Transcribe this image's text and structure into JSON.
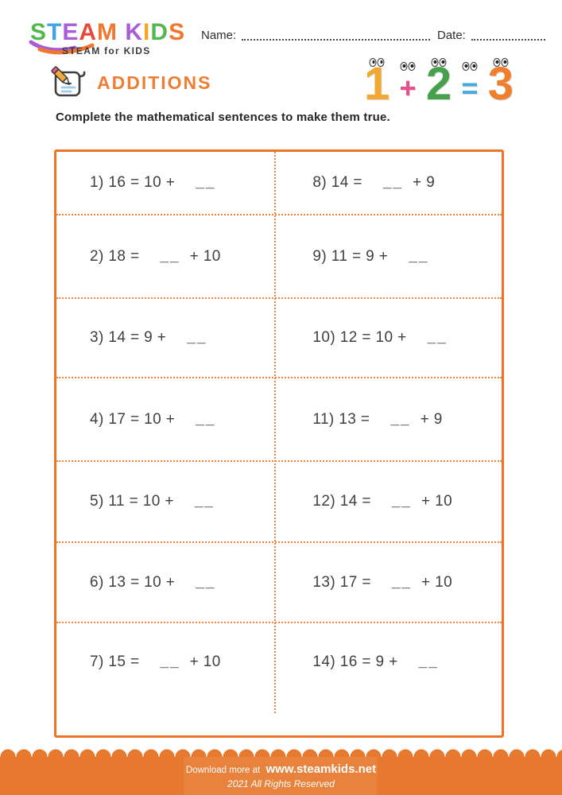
{
  "logo": {
    "letters": [
      {
        "ch": "S",
        "color": "#52b84d"
      },
      {
        "ch": "T",
        "color": "#3fa3e6"
      },
      {
        "ch": "E",
        "color": "#a95cd8"
      },
      {
        "ch": "A",
        "color": "#e8483b"
      },
      {
        "ch": "M",
        "color": "#f2772e"
      },
      {
        "ch": " ",
        "color": "#000000"
      },
      {
        "ch": "K",
        "color": "#a95cd8"
      },
      {
        "ch": "I",
        "color": "#f5a623"
      },
      {
        "ch": "D",
        "color": "#52b84d"
      },
      {
        "ch": "S",
        "color": "#f2772e"
      }
    ],
    "tagline": "STEAM for KIDS"
  },
  "header": {
    "name_label": "Name:",
    "date_label": "Date:"
  },
  "title": "ADDITIONS",
  "graphic": {
    "items": [
      {
        "ch": "1",
        "color": "#f0a832",
        "size": "large",
        "name": "number-1-character"
      },
      {
        "ch": "+",
        "color": "#e8508f",
        "size": "small",
        "name": "plus-character"
      },
      {
        "ch": "2",
        "color": "#47a04b",
        "size": "large",
        "name": "number-2-character"
      },
      {
        "ch": "=",
        "color": "#46aadc",
        "size": "small",
        "name": "equals-character"
      },
      {
        "ch": "3",
        "color": "#ef7f2c",
        "size": "large",
        "name": "number-3-character"
      }
    ]
  },
  "instruction": "Complete the mathematical sentences to make them true.",
  "worksheet": {
    "blank_glyph": "__",
    "left": [
      {
        "p": "1) 16 = 10 +",
        "s": ""
      },
      {
        "p": "2) 18 =",
        "s": "+ 10"
      },
      {
        "p": "3) 14 = 9 +",
        "s": ""
      },
      {
        "p": "4) 17 = 10 +",
        "s": ""
      },
      {
        "p": "5) 11 = 10 +",
        "s": ""
      },
      {
        "p": "6) 13 = 10 +",
        "s": ""
      },
      {
        "p": "7) 15 =",
        "s": "+ 10"
      }
    ],
    "right": [
      {
        "p": "8) 14 =",
        "s": "+ 9"
      },
      {
        "p": "9) 11 = 9 +",
        "s": ""
      },
      {
        "p": "10) 12 = 10 +",
        "s": ""
      },
      {
        "p": "11) 13 =",
        "s": "+ 9"
      },
      {
        "p": "12) 14 =",
        "s": "+ 10"
      },
      {
        "p": "13) 17 =",
        "s": "+ 10"
      },
      {
        "p": "14) 16 = 9 +",
        "s": ""
      }
    ]
  },
  "footer": {
    "line1_regular": "Download more at",
    "line1_bold": "www.steamkids.net",
    "line2": "2021 All Rights Reserved"
  },
  "colors": {
    "accent_orange": "#ef7d33",
    "table_border": "#ed7327",
    "dotted_divider": "#f0863a",
    "footer_band": "#e7792e",
    "problem_text": "#3f3f3f"
  }
}
